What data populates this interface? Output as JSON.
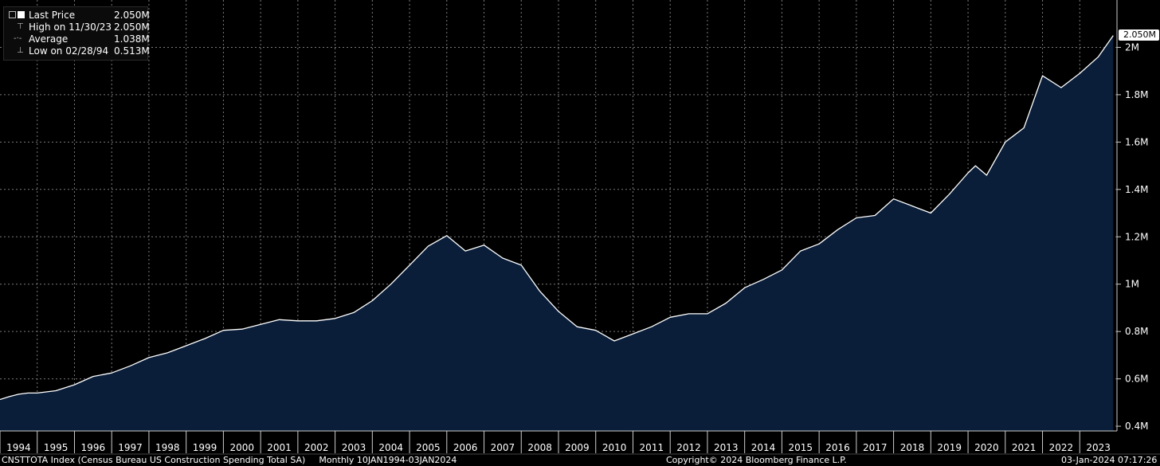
{
  "legend": {
    "rows": [
      {
        "label": "Last Price",
        "value": "2.050M"
      },
      {
        "label": "High on 11/30/23",
        "value": "2.050M"
      },
      {
        "label": "Average",
        "value": "1.038M"
      },
      {
        "label": "Low on 02/28/94",
        "value": "0.513M"
      }
    ]
  },
  "last_price_tag": "2.050M",
  "footer": {
    "left": "CNSTTOTA Index (Census Bureau US Construction Spending Total SA)",
    "range": "Monthly 10JAN1994-03JAN2024",
    "center": "Copyright© 2024 Bloomberg Finance L.P.",
    "right": "03-Jan-2024 07:17:26"
  },
  "colors": {
    "background": "#000000",
    "area_fill": "#0a1e3a",
    "line": "#ffffff",
    "grid": "#7a7a7a"
  },
  "chart_data": {
    "type": "area",
    "ylim": [
      0.38,
      2.2
    ],
    "y_ticks": [
      0.4,
      0.6,
      0.8,
      1.0,
      1.2,
      1.4,
      1.6,
      1.8,
      2.0
    ],
    "y_tick_labels": [
      "0.4M",
      "0.6M",
      "0.8M",
      "1M",
      "1.2M",
      "1.4M",
      "1.6M",
      "1.8M",
      "2M"
    ],
    "x_tick_labels": [
      "1994",
      "1995",
      "1996",
      "1997",
      "1998",
      "1999",
      "2000",
      "2001",
      "2002",
      "2003",
      "2004",
      "2005",
      "2006",
      "2007",
      "2008",
      "2009",
      "2010",
      "2011",
      "2012",
      "2013",
      "2014",
      "2015",
      "2016",
      "2017",
      "2018",
      "2019",
      "2020",
      "2021",
      "2022",
      "2023"
    ],
    "x_range": [
      1994.0,
      2024.0
    ],
    "grid": true,
    "series": [
      {
        "x": [
          1994.0,
          1994.25,
          1994.5,
          1994.75,
          1995.0,
          1995.5,
          1996.0,
          1996.5,
          1997.0,
          1997.5,
          1998.0,
          1998.5,
          1999.0,
          1999.5,
          2000.0,
          2000.5,
          2001.0,
          2001.5,
          2002.0,
          2002.5,
          2003.0,
          2003.5,
          2004.0,
          2004.5,
          2005.0,
          2005.5,
          2006.0,
          2006.5,
          2007.0,
          2007.5,
          2008.0,
          2008.5,
          2009.0,
          2009.5,
          2010.0,
          2010.5,
          2011.0,
          2011.5,
          2012.0,
          2012.5,
          2013.0,
          2013.5,
          2014.0,
          2014.5,
          2015.0,
          2015.5,
          2016.0,
          2016.5,
          2017.0,
          2017.5,
          2018.0,
          2018.5,
          2019.0,
          2019.5,
          2020.0,
          2020.2,
          2020.5,
          2021.0,
          2021.5,
          2022.0,
          2022.5,
          2023.0,
          2023.5,
          2023.9
        ],
        "values": [
          0.513,
          0.525,
          0.535,
          0.54,
          0.54,
          0.55,
          0.575,
          0.61,
          0.625,
          0.655,
          0.69,
          0.71,
          0.74,
          0.77,
          0.805,
          0.81,
          0.83,
          0.85,
          0.845,
          0.845,
          0.855,
          0.88,
          0.93,
          1.0,
          1.08,
          1.16,
          1.205,
          1.14,
          1.165,
          1.11,
          1.08,
          0.97,
          0.885,
          0.82,
          0.805,
          0.76,
          0.79,
          0.82,
          0.86,
          0.875,
          0.875,
          0.92,
          0.985,
          1.02,
          1.06,
          1.14,
          1.17,
          1.23,
          1.28,
          1.29,
          1.36,
          1.33,
          1.3,
          1.38,
          1.47,
          1.5,
          1.46,
          1.6,
          1.66,
          1.88,
          1.83,
          1.89,
          1.96,
          2.05
        ]
      }
    ]
  }
}
